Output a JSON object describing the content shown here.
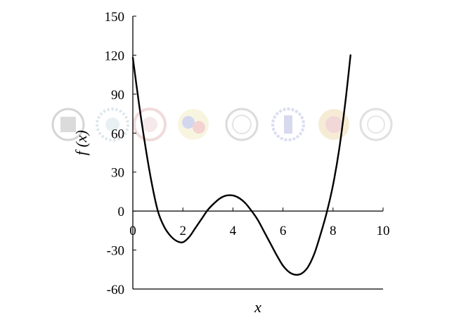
{
  "chart_data": {
    "type": "line",
    "title": "",
    "xlabel": "x",
    "ylabel": "f (x)",
    "xlim": [
      0,
      10
    ],
    "ylim": [
      -60,
      150
    ],
    "xticks": [
      0,
      2,
      4,
      6,
      8,
      10
    ],
    "yticks": [
      -60,
      -30,
      0,
      30,
      60,
      90,
      120,
      150
    ],
    "xtick_labels": [
      "0",
      "2",
      "4",
      "6",
      "8",
      "10"
    ],
    "ytick_labels": [
      "-60",
      "-30",
      "0",
      "30",
      "60",
      "90",
      "120",
      "150"
    ],
    "grid": false,
    "legend": "none",
    "series": [
      {
        "color": "#000000",
        "x": [
          0,
          0.25,
          0.5,
          0.75,
          1.0,
          1.25,
          1.5,
          1.75,
          2.0,
          2.25,
          2.5,
          2.75,
          3.0,
          3.25,
          3.5,
          3.75,
          4.0,
          4.25,
          4.5,
          4.75,
          5.0,
          5.25,
          5.5,
          5.75,
          6.0,
          6.25,
          6.5,
          6.75,
          7.0,
          7.25,
          7.5,
          7.75,
          8.0,
          8.25,
          8.5,
          8.7
        ],
        "y": [
          118,
          82,
          50,
          22,
          0,
          -12,
          -19,
          -23,
          -24,
          -20,
          -13,
          -6,
          1,
          6,
          10,
          12,
          12,
          10,
          6,
          0,
          -7,
          -16,
          -25,
          -34,
          -42,
          -47,
          -49,
          -48,
          -43,
          -33,
          -18,
          -1,
          20,
          48,
          85,
          120
        ]
      }
    ]
  },
  "colors": {
    "line": "#000000",
    "axes": "#000000",
    "background": "#ffffff"
  }
}
